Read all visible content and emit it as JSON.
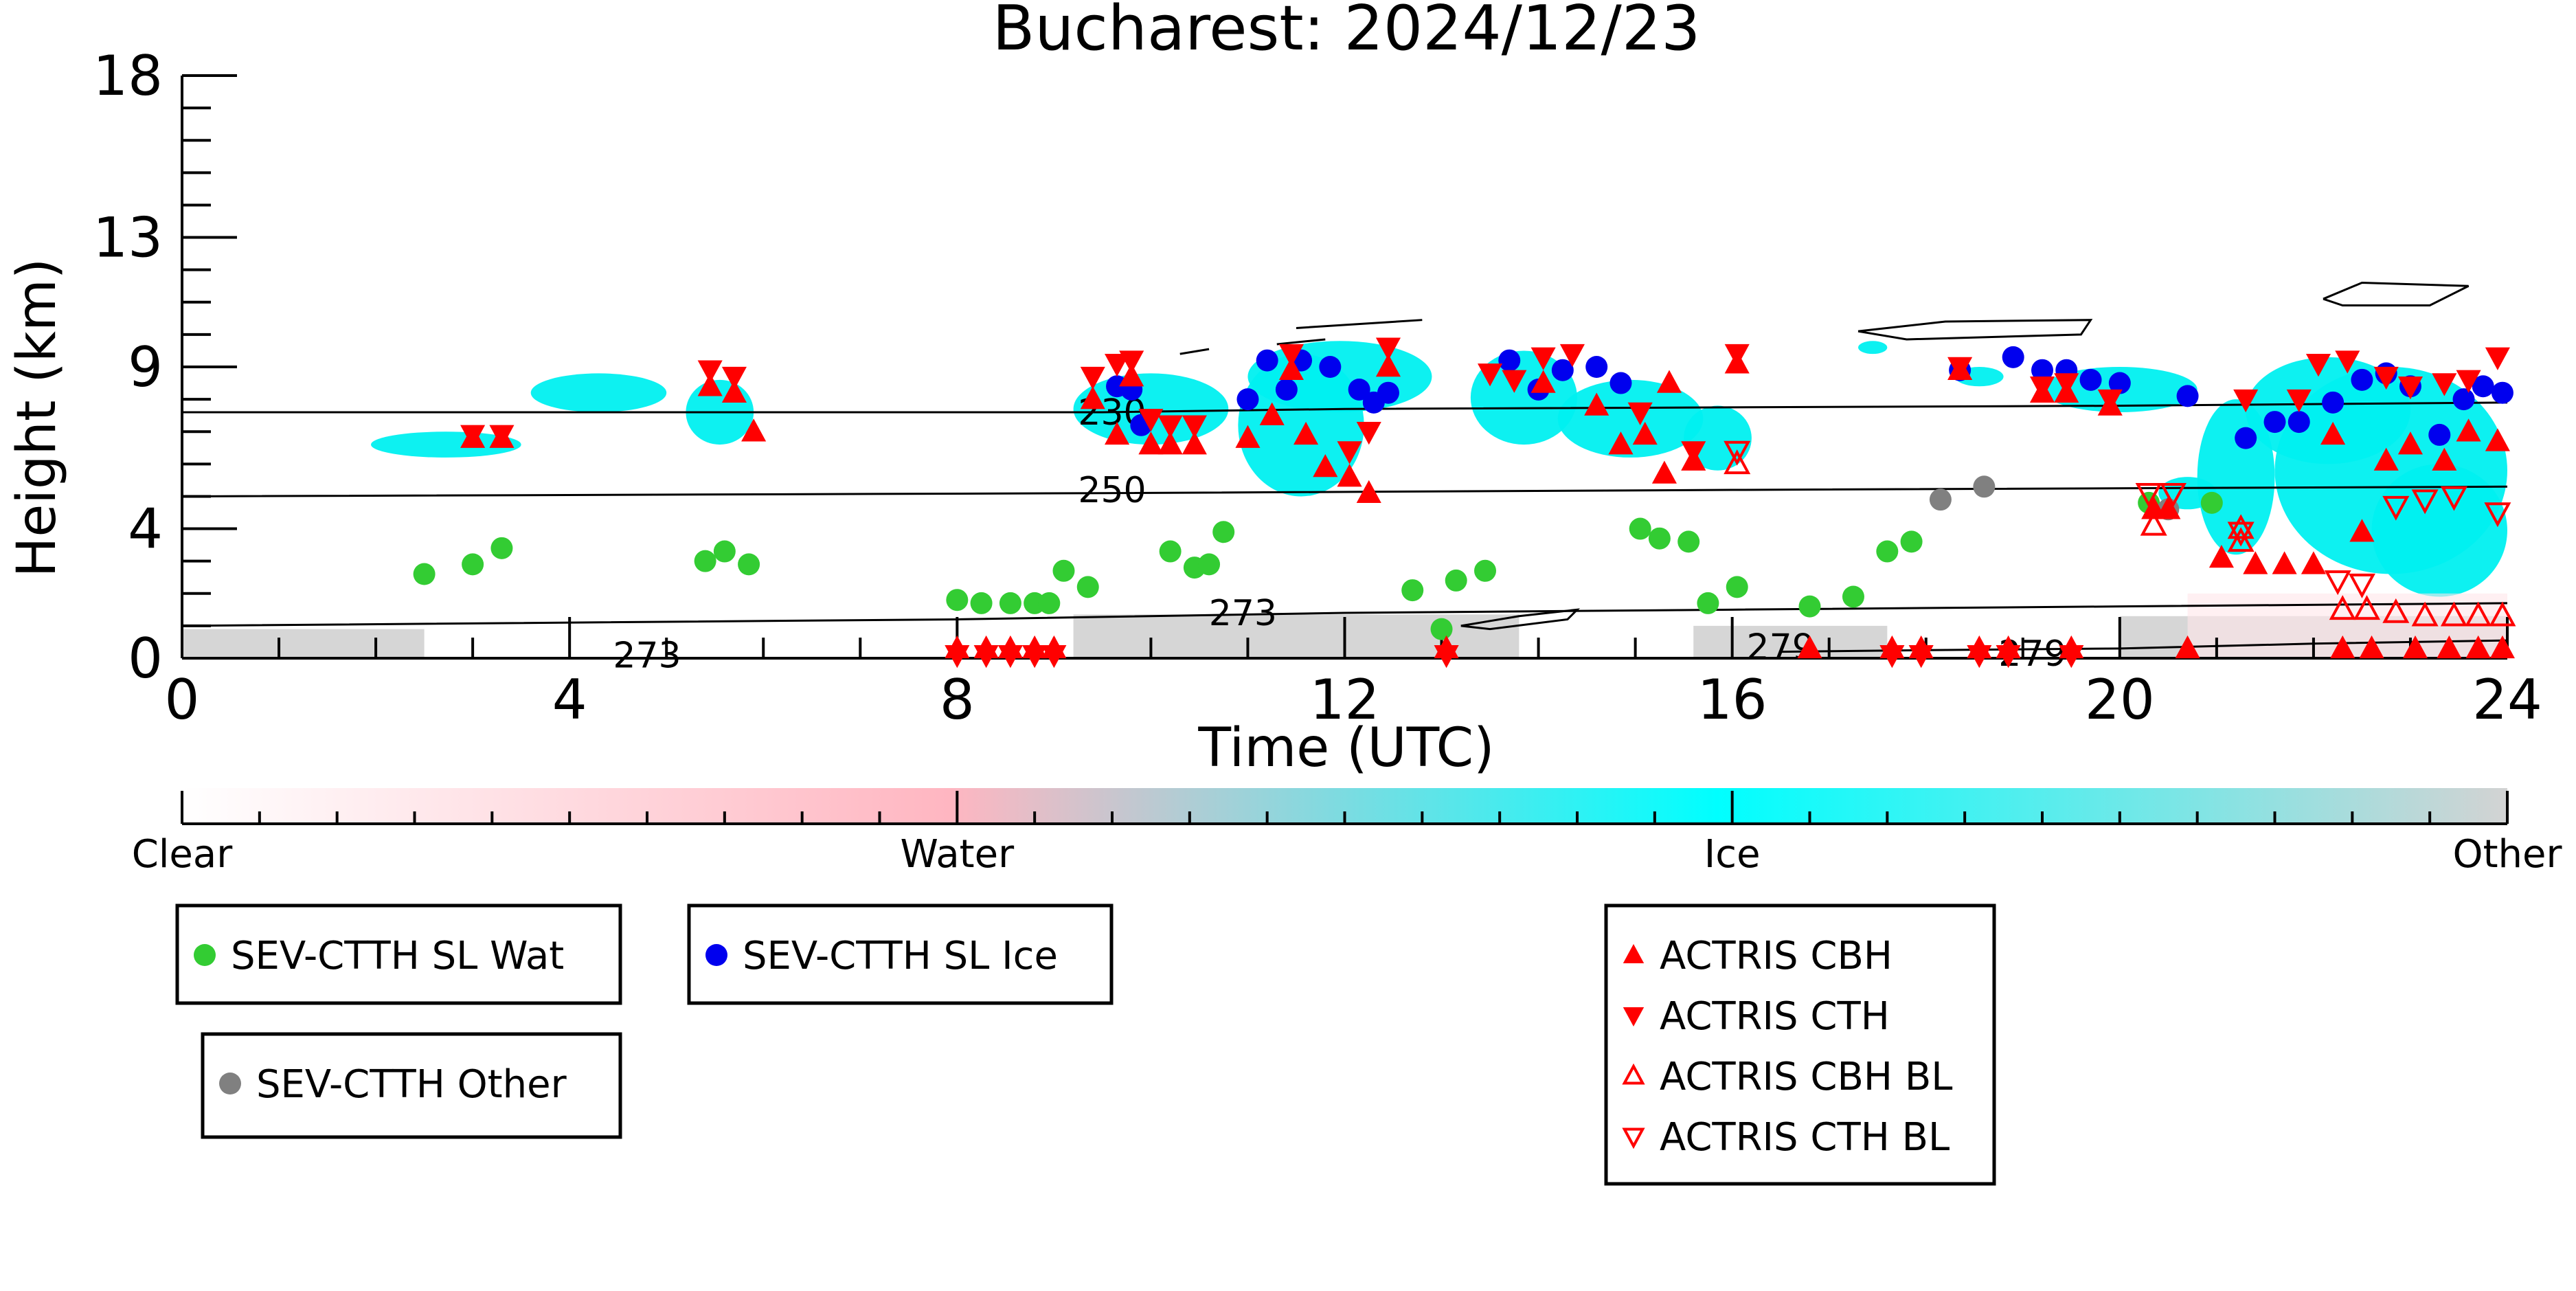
{
  "chart_data": {
    "type": "scatter",
    "title": "Bucharest: 2024/12/23",
    "xlabel": "Time (UTC)",
    "ylabel": "Height (km)",
    "xlim": [
      0,
      24
    ],
    "ylim": [
      0,
      18
    ],
    "x_ticks": [
      "0",
      "4",
      "8",
      "12",
      "16",
      "20",
      "24"
    ],
    "y_ticks": [
      "0",
      "4",
      "9",
      "13",
      "18"
    ],
    "colorbar": {
      "labels": [
        "Clear",
        "Water",
        "Ice",
        "Other"
      ],
      "colors": [
        "#ffffff",
        "#ffb6c1",
        "#00ffff",
        "#d3d3d3"
      ]
    },
    "legends": [
      {
        "entries": [
          {
            "name": "SEV-CTTH SL Wat",
            "marker": "filled-circle",
            "color": "#33cc33"
          }
        ]
      },
      {
        "entries": [
          {
            "name": "SEV-CTTH SL Ice",
            "marker": "filled-circle",
            "color": "#0000ee"
          }
        ]
      },
      {
        "entries": [
          {
            "name": "SEV-CTTH Other",
            "marker": "filled-circle",
            "color": "#808080"
          }
        ]
      },
      {
        "entries": [
          {
            "name": "ACTRIS CBH",
            "marker": "filled-triangle-up",
            "color": "#ff0000"
          },
          {
            "name": "ACTRIS CTH",
            "marker": "filled-triangle-down",
            "color": "#ff0000"
          },
          {
            "name": "ACTRIS CBH BL",
            "marker": "open-triangle-up",
            "color": "#ff0000"
          },
          {
            "name": "ACTRIS CTH BL",
            "marker": "open-triangle-down",
            "color": "#ff0000"
          }
        ]
      }
    ],
    "contour_labels": [
      {
        "label": "230",
        "x": 9.6,
        "y": 7.6
      },
      {
        "label": "250",
        "x": 9.6,
        "y": 5.2
      },
      {
        "label": "273",
        "x": 10.95,
        "y": 1.4
      },
      {
        "label": "273",
        "x": 4.8,
        "y": 0.1
      },
      {
        "label": "279",
        "x": 16.5,
        "y": 0.35
      },
      {
        "label": "279",
        "x": 19.1,
        "y": 0.15
      }
    ],
    "series": [
      {
        "name": "SEV-CTTH SL Wat",
        "points": [
          [
            2.5,
            2.6
          ],
          [
            3.0,
            2.9
          ],
          [
            3.3,
            3.4
          ],
          [
            5.4,
            3.0
          ],
          [
            5.6,
            3.3
          ],
          [
            5.85,
            2.9
          ],
          [
            8.0,
            1.8
          ],
          [
            8.25,
            1.7
          ],
          [
            8.55,
            1.7
          ],
          [
            8.8,
            1.7
          ],
          [
            8.95,
            1.7
          ],
          [
            9.1,
            2.7
          ],
          [
            9.35,
            2.2
          ],
          [
            10.2,
            3.3
          ],
          [
            10.45,
            2.8
          ],
          [
            10.6,
            2.9
          ],
          [
            10.75,
            3.9
          ],
          [
            12.7,
            2.1
          ],
          [
            13.0,
            0.9
          ],
          [
            13.15,
            2.4
          ],
          [
            13.45,
            2.7
          ],
          [
            15.05,
            4.0
          ],
          [
            15.25,
            3.7
          ],
          [
            15.55,
            3.6
          ],
          [
            15.75,
            1.7
          ],
          [
            16.05,
            2.2
          ],
          [
            16.8,
            1.6
          ],
          [
            17.25,
            1.9
          ],
          [
            17.6,
            3.3
          ],
          [
            17.85,
            3.6
          ],
          [
            20.3,
            4.8
          ],
          [
            20.95,
            4.8
          ]
        ]
      },
      {
        "name": "SEV-CTTH SL Ice",
        "points": [
          [
            9.65,
            8.4
          ],
          [
            9.8,
            8.3
          ],
          [
            9.9,
            7.2
          ],
          [
            11.0,
            8.0
          ],
          [
            11.2,
            9.2
          ],
          [
            11.4,
            8.3
          ],
          [
            11.55,
            9.2
          ],
          [
            11.85,
            9.0
          ],
          [
            12.15,
            8.3
          ],
          [
            12.3,
            7.9
          ],
          [
            12.45,
            8.2
          ],
          [
            13.7,
            9.2
          ],
          [
            14.0,
            8.3
          ],
          [
            14.25,
            8.9
          ],
          [
            14.6,
            9.0
          ],
          [
            14.85,
            8.5
          ],
          [
            18.35,
            8.9
          ],
          [
            18.9,
            9.3
          ],
          [
            19.2,
            8.9
          ],
          [
            19.45,
            8.9
          ],
          [
            19.7,
            8.6
          ],
          [
            20.0,
            8.5
          ],
          [
            20.7,
            8.1
          ],
          [
            21.3,
            6.8
          ],
          [
            21.6,
            7.3
          ],
          [
            21.85,
            7.3
          ],
          [
            22.2,
            7.9
          ],
          [
            22.5,
            8.6
          ],
          [
            22.75,
            8.8
          ],
          [
            23.0,
            8.4
          ],
          [
            23.3,
            6.9
          ],
          [
            23.55,
            8.0
          ],
          [
            23.75,
            8.4
          ],
          [
            23.95,
            8.2
          ]
        ]
      },
      {
        "name": "SEV-CTTH Other",
        "points": [
          [
            18.15,
            4.9
          ],
          [
            18.6,
            5.3
          ],
          [
            20.5,
            4.6
          ]
        ]
      },
      {
        "name": "ACTRIS CBH",
        "points": [
          [
            3.0,
            6.8
          ],
          [
            3.3,
            6.8
          ],
          [
            5.45,
            8.4
          ],
          [
            5.7,
            8.2
          ],
          [
            5.9,
            7.0
          ],
          [
            9.4,
            8.0
          ],
          [
            9.65,
            6.9
          ],
          [
            9.8,
            8.7
          ],
          [
            10.0,
            6.6
          ],
          [
            10.2,
            6.6
          ],
          [
            10.45,
            6.6
          ],
          [
            11.0,
            6.8
          ],
          [
            11.25,
            7.5
          ],
          [
            11.45,
            8.9
          ],
          [
            11.6,
            6.9
          ],
          [
            11.8,
            5.9
          ],
          [
            12.05,
            5.6
          ],
          [
            12.25,
            5.1
          ],
          [
            12.45,
            9.0
          ],
          [
            14.05,
            8.5
          ],
          [
            14.6,
            7.8
          ],
          [
            14.85,
            6.6
          ],
          [
            15.1,
            6.9
          ],
          [
            15.3,
            5.7
          ],
          [
            15.6,
            6.1
          ],
          [
            15.35,
            8.5
          ],
          [
            16.05,
            9.1
          ],
          [
            18.35,
            8.9
          ],
          [
            19.2,
            8.2
          ],
          [
            19.45,
            8.2
          ],
          [
            19.9,
            7.8
          ],
          [
            20.35,
            4.6
          ],
          [
            20.5,
            4.6
          ],
          [
            21.05,
            3.1
          ],
          [
            21.4,
            2.9
          ],
          [
            21.7,
            2.9
          ],
          [
            22.0,
            2.9
          ],
          [
            22.2,
            6.9
          ],
          [
            22.5,
            3.9
          ],
          [
            22.75,
            6.1
          ],
          [
            23.0,
            6.6
          ],
          [
            23.35,
            6.1
          ],
          [
            23.6,
            7.0
          ],
          [
            23.9,
            6.7
          ],
          [
            8.0,
            0.3
          ],
          [
            8.3,
            0.3
          ],
          [
            8.55,
            0.3
          ],
          [
            8.8,
            0.3
          ],
          [
            9.0,
            0.3
          ],
          [
            13.05,
            0.3
          ],
          [
            16.8,
            0.3
          ],
          [
            17.65,
            0.3
          ],
          [
            17.95,
            0.3
          ],
          [
            18.55,
            0.3
          ],
          [
            18.85,
            0.3
          ],
          [
            19.5,
            0.3
          ],
          [
            20.7,
            0.3
          ],
          [
            22.3,
            0.3
          ],
          [
            22.6,
            0.3
          ],
          [
            23.05,
            0.3
          ],
          [
            23.4,
            0.3
          ],
          [
            23.7,
            0.3
          ],
          [
            23.95,
            0.3
          ]
        ]
      },
      {
        "name": "ACTRIS CTH",
        "points": [
          [
            3.0,
            6.9
          ],
          [
            3.3,
            6.9
          ],
          [
            5.45,
            8.9
          ],
          [
            5.7,
            8.7
          ],
          [
            9.4,
            8.7
          ],
          [
            9.65,
            9.1
          ],
          [
            9.8,
            9.2
          ],
          [
            10.0,
            7.4
          ],
          [
            10.2,
            7.2
          ],
          [
            10.45,
            7.2
          ],
          [
            11.45,
            9.4
          ],
          [
            12.05,
            6.4
          ],
          [
            12.25,
            7.0
          ],
          [
            12.45,
            9.6
          ],
          [
            13.5,
            8.8
          ],
          [
            13.75,
            8.6
          ],
          [
            14.05,
            9.3
          ],
          [
            14.35,
            9.4
          ],
          [
            15.05,
            7.6
          ],
          [
            15.6,
            6.4
          ],
          [
            16.05,
            9.4
          ],
          [
            18.35,
            9.0
          ],
          [
            19.2,
            8.4
          ],
          [
            19.45,
            8.5
          ],
          [
            19.9,
            8.0
          ],
          [
            21.3,
            8.0
          ],
          [
            21.85,
            8.0
          ],
          [
            22.05,
            9.1
          ],
          [
            22.35,
            9.2
          ],
          [
            22.75,
            8.7
          ],
          [
            23.0,
            8.4
          ],
          [
            23.35,
            8.5
          ],
          [
            23.6,
            8.6
          ],
          [
            23.9,
            9.3
          ],
          [
            8.0,
            0.1
          ],
          [
            8.3,
            0.1
          ],
          [
            8.55,
            0.1
          ],
          [
            8.8,
            0.1
          ],
          [
            9.0,
            0.1
          ],
          [
            13.05,
            0.1
          ],
          [
            17.65,
            0.1
          ],
          [
            17.95,
            0.1
          ],
          [
            18.55,
            0.1
          ],
          [
            18.85,
            0.1
          ],
          [
            19.5,
            0.1
          ]
        ]
      },
      {
        "name": "ACTRIS CBH BL",
        "points": [
          [
            16.05,
            6.0
          ],
          [
            20.35,
            4.1
          ],
          [
            21.25,
            3.6
          ],
          [
            21.25,
            4.0
          ],
          [
            22.3,
            1.5
          ],
          [
            22.55,
            1.5
          ],
          [
            22.85,
            1.4
          ],
          [
            23.15,
            1.3
          ],
          [
            23.45,
            1.3
          ],
          [
            23.7,
            1.3
          ],
          [
            23.95,
            1.3
          ]
        ]
      },
      {
        "name": "ACTRIS CTH BL",
        "points": [
          [
            16.05,
            6.4
          ],
          [
            20.3,
            5.1
          ],
          [
            20.55,
            5.1
          ],
          [
            21.25,
            3.9
          ],
          [
            22.25,
            2.4
          ],
          [
            22.5,
            2.3
          ],
          [
            22.85,
            4.7
          ],
          [
            23.15,
            4.9
          ],
          [
            23.45,
            5.0
          ],
          [
            23.9,
            4.5
          ]
        ]
      }
    ]
  }
}
